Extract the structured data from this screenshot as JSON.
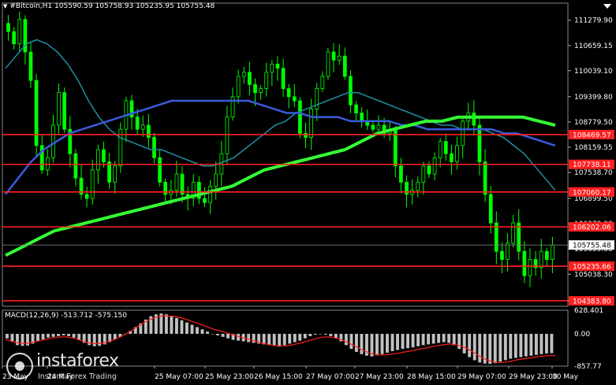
{
  "header": {
    "symbol_line": "#Bitcoin,H1  105590.59 105758.93 105235.95 105755.48"
  },
  "macd_header": "MACD(12,26,9) -513.712 -575.150",
  "logo": {
    "name": "instaforex",
    "tagline": "Instant Forex Trading"
  },
  "colors": {
    "background": "#000000",
    "candle": "#00ff00",
    "ma_fast": "#1e90a0",
    "ma_mid": "#3b5bdb",
    "ma_slow": "#33ff33",
    "level_line": "#ff2020",
    "macd_hist": "#c0c0c0",
    "macd_signal": "#ff2020"
  },
  "chart_data": [
    {
      "type": "candlestick",
      "title": "#Bitcoin,H1",
      "ohlc_last": {
        "open": 105590.59,
        "high": 105758.93,
        "low": 105235.95,
        "close": 105755.48
      },
      "ylim": [
        104250,
        111700
      ],
      "y_ticks": [
        111279.9,
        110659.15,
        110039.1,
        109399.8,
        108779.5,
        108159.55,
        107538.7,
        106899.5,
        106279.2,
        105659.05,
        105038.3,
        104383.8
      ],
      "x_ticks": [
        "23 May",
        "24 May",
        "25 May 07:00",
        "25 May 23:00",
        "26 May 15:00",
        "27 May 07:00",
        "27 May 23:00",
        "28 May 15:00",
        "29 May 07:00",
        "29 May 23:00",
        "30 May"
      ],
      "level_lines": [
        {
          "label": "108469.57",
          "value": 108469.57
        },
        {
          "label": "107738.11",
          "value": 107738.11
        },
        {
          "label": "107060.17",
          "value": 107060.17
        },
        {
          "label": "106202.06",
          "value": 106202.06
        },
        {
          "label": "105235.66",
          "value": 105235.66
        },
        {
          "label": "104383.80",
          "value": 104383.8
        }
      ],
      "current_price": {
        "label": "105755.48",
        "value": 105755.48
      },
      "close_series": [
        111000,
        110700,
        111300,
        110500,
        109800,
        108200,
        107600,
        107900,
        108700,
        109500,
        108600,
        108000,
        107400,
        107000,
        106900,
        107600,
        108100,
        107800,
        107300,
        107700,
        108600,
        109300,
        108900,
        108600,
        108700,
        108400,
        107900,
        107300,
        107000,
        107100,
        107500,
        107000,
        106900,
        107300,
        106900,
        106800,
        107200,
        107500,
        108000,
        108900,
        109400,
        109900,
        110000,
        109700,
        109500,
        109600,
        110000,
        110200,
        110100,
        109600,
        109400,
        109300,
        108500,
        108400,
        109100,
        109600,
        109900,
        110500,
        110300,
        110400,
        109900,
        109200,
        109000,
        108800,
        108700,
        108600,
        108700,
        108500,
        108600,
        107700,
        107300,
        107000,
        107100,
        107300,
        107700,
        107500,
        107900,
        108300,
        108000,
        107800,
        108200,
        108800,
        109000,
        108700,
        107800,
        107000,
        106300,
        105600,
        105400,
        105800,
        106300,
        105600,
        105000,
        105400,
        105200,
        105600,
        105400,
        105755
      ],
      "series": [
        {
          "name": "MA fast",
          "values": [
            110100,
            110400,
            110700,
            110800,
            110700,
            110500,
            110200,
            109800,
            109300,
            108900,
            108600,
            108400,
            108300,
            108200,
            108100,
            108100,
            108000,
            107900,
            107800,
            107700,
            107700,
            107800,
            107900,
            108100,
            108300,
            108500,
            108700,
            108800,
            109000,
            109100,
            109200,
            109300,
            109400,
            109500,
            109500,
            109400,
            109300,
            109200,
            109100,
            109000,
            108900,
            108800,
            108700,
            108700,
            108600,
            108600,
            108600,
            108500,
            108400,
            108200,
            108000,
            107700,
            107400,
            107100
          ]
        },
        {
          "name": "MA mid",
          "values": [
            107000,
            107400,
            107800,
            108100,
            108300,
            108500,
            108600,
            108700,
            108800,
            108900,
            109000,
            109100,
            109200,
            109300,
            109300,
            109300,
            109300,
            109300,
            109300,
            109300,
            109200,
            109100,
            109000,
            109000,
            108900,
            108900,
            108900,
            108800,
            108800,
            108800,
            108800,
            108700,
            108700,
            108600,
            108600,
            108600,
            108600,
            108600,
            108600,
            108500,
            108500,
            108400,
            108300,
            108200
          ]
        },
        {
          "name": "MA slow",
          "values": [
            105500,
            105700,
            105900,
            106100,
            106200,
            106300,
            106400,
            106500,
            106600,
            106700,
            106800,
            106900,
            107000,
            107100,
            107200,
            107400,
            107600,
            107700,
            107800,
            107900,
            108000,
            108100,
            108300,
            108500,
            108600,
            108700,
            108800,
            108800,
            108900,
            108900,
            108900,
            108900,
            108900,
            108800,
            108700
          ]
        }
      ]
    },
    {
      "type": "bar",
      "title": "MACD(12,26,9)",
      "ylim": [
        -857.77,
        628.401
      ],
      "y_ticks": [
        628.401,
        0.0,
        -857.77
      ],
      "histogram": [
        -120,
        -210,
        -300,
        -320,
        -310,
        -260,
        -200,
        -150,
        -100,
        -80,
        -60,
        -40,
        -60,
        -100,
        -160,
        -240,
        -300,
        -330,
        -320,
        -280,
        -220,
        -150,
        -80,
        0,
        80,
        180,
        280,
        380,
        470,
        520,
        540,
        520,
        480,
        420,
        360,
        300,
        240,
        180,
        120,
        60,
        0,
        -40,
        -80,
        -120,
        -160,
        -180,
        -200,
        -220,
        -240,
        -260,
        -280,
        -300,
        -320,
        -340,
        -300,
        -260,
        -220,
        -180,
        -120,
        -60,
        -20,
        0,
        -20,
        -60,
        -120,
        -200,
        -300,
        -400,
        -480,
        -540,
        -580,
        -600,
        -570,
        -540,
        -500,
        -460,
        -430,
        -400,
        -380,
        -360,
        -330,
        -300,
        -280,
        -260,
        -240,
        -220,
        -240,
        -300,
        -400,
        -520,
        -620,
        -700,
        -760,
        -790,
        -800,
        -780,
        -740,
        -700,
        -660,
        -640,
        -620,
        -600,
        -580,
        -560,
        -540,
        -520,
        -514
      ],
      "signal": [
        -150,
        -190,
        -230,
        -250,
        -250,
        -230,
        -200,
        -170,
        -140,
        -110,
        -90,
        -80,
        -85,
        -110,
        -150,
        -200,
        -240,
        -260,
        -260,
        -240,
        -200,
        -150,
        -90,
        -20,
        60,
        150,
        240,
        320,
        390,
        440,
        470,
        480,
        470,
        450,
        420,
        380,
        330,
        280,
        230,
        180,
        130,
        90,
        50,
        10,
        -30,
        -70,
        -110,
        -150,
        -190,
        -230,
        -260,
        -290,
        -310,
        -320,
        -320,
        -300,
        -270,
        -240,
        -200,
        -160,
        -120,
        -90,
        -80,
        -90,
        -120,
        -170,
        -230,
        -300,
        -370,
        -440,
        -500,
        -540,
        -560,
        -560,
        -550,
        -530,
        -510,
        -480,
        -460,
        -430,
        -400,
        -380,
        -350,
        -320,
        -300,
        -280,
        -270,
        -290,
        -330,
        -390,
        -470,
        -560,
        -640,
        -700,
        -740,
        -760,
        -760,
        -740,
        -710,
        -680,
        -660,
        -640,
        -620,
        -600,
        -590,
        -580,
        -575
      ]
    }
  ]
}
